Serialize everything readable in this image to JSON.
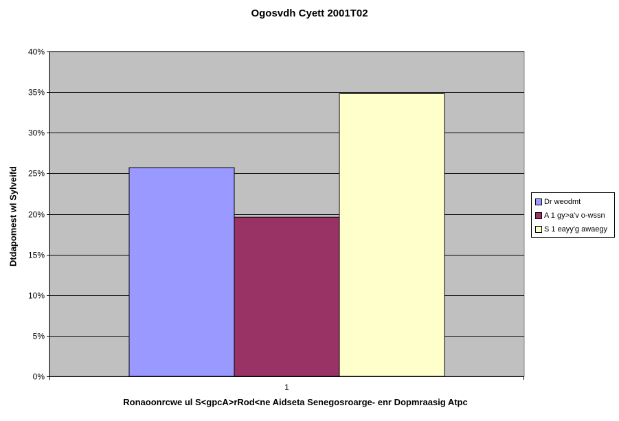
{
  "chart_data": {
    "type": "bar",
    "title": "Ogosvdh Cyett 2001T02",
    "xlabel": "Ronaoonrcwe ul S<gpcA>rRod<ne Aidseta Senegosroarge- enr Dopmraasig Atpc",
    "ylabel": "Dtdapomest wl Sylveifd",
    "categories": [
      "1"
    ],
    "ylim": [
      0,
      0.4
    ],
    "yticks": [
      {
        "value": 0,
        "label": "0%"
      },
      {
        "value": 0.05,
        "label": "5%"
      },
      {
        "value": 0.1,
        "label": "10%"
      },
      {
        "value": 0.15,
        "label": "15%"
      },
      {
        "value": 0.2,
        "label": "20%"
      },
      {
        "value": 0.25,
        "label": "25%"
      },
      {
        "value": 0.3,
        "label": "30%"
      },
      {
        "value": 0.35,
        "label": "35%"
      },
      {
        "value": 0.4,
        "label": "40%"
      }
    ],
    "grid": true,
    "legend_position": "right",
    "plot_background": "#c0c0c0",
    "series": [
      {
        "name": "Dr weodmt",
        "values": [
          0.257
        ],
        "color": "#9999ff"
      },
      {
        "name": "A 1 gy>a'v o-wssn",
        "values": [
          0.196
        ],
        "color": "#993366"
      },
      {
        "name": "S 1 eayy'g awaegy",
        "values": [
          0.348
        ],
        "color": "#ffffcc"
      }
    ]
  }
}
